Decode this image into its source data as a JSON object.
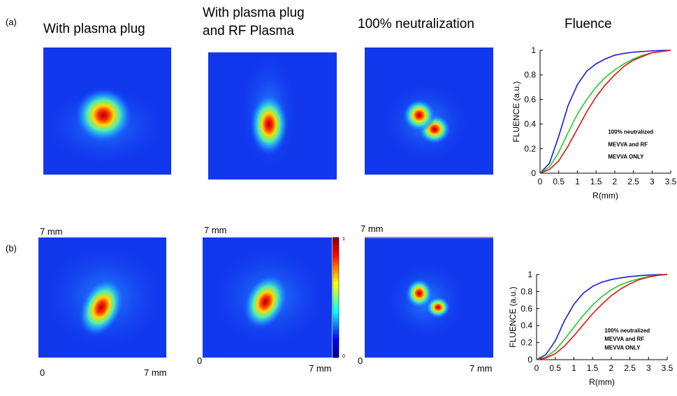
{
  "panel_labels": [
    "(a)",
    "(b)"
  ],
  "column_titles": [
    [
      "With plasma plug"
    ],
    [
      "With plasma plug",
      "and RF Plasma"
    ],
    [
      "100% neutralization"
    ],
    [
      "Fluence"
    ]
  ],
  "image_scales": [
    {
      "top": "7 mm",
      "left": "0",
      "right": "7 mm"
    },
    {
      "top": "7 mm",
      "left": "0",
      "right": "7 mm"
    },
    {
      "top": "7 mm",
      "left": "0",
      "right": "7 mm"
    }
  ],
  "colorbar_labels": {
    "max": "1",
    "min": "0"
  },
  "chart_data": [
    {
      "type": "line",
      "xlabel": "R(mm)",
      "ylabel": "FLUENCE (a.u.)",
      "x": [
        0,
        0.25,
        0.5,
        0.75,
        1,
        1.25,
        1.5,
        1.75,
        2,
        2.25,
        2.5,
        2.75,
        3,
        3.25,
        3.5
      ],
      "xlim": [
        0,
        3.5
      ],
      "xticks": [
        0,
        0.5,
        1,
        1.5,
        2,
        2.5,
        3,
        3.5
      ],
      "ylim": [
        0,
        1
      ],
      "yticks": [
        0,
        0.2,
        0.4,
        0.6,
        0.8,
        1
      ],
      "series": [
        {
          "name": "100% neutralized",
          "color": "#1a1ad0",
          "values": [
            0,
            0.08,
            0.3,
            0.55,
            0.72,
            0.83,
            0.89,
            0.93,
            0.96,
            0.975,
            0.985,
            0.99,
            0.995,
            0.998,
            1
          ]
        },
        {
          "name": "MEVVA and RF",
          "color": "#22cc22",
          "values": [
            0,
            0.05,
            0.17,
            0.33,
            0.48,
            0.6,
            0.7,
            0.78,
            0.84,
            0.89,
            0.93,
            0.96,
            0.98,
            0.99,
            1
          ]
        },
        {
          "name": "MEVVA ONLY",
          "color": "#e01010",
          "values": [
            0,
            0.03,
            0.1,
            0.22,
            0.36,
            0.5,
            0.62,
            0.72,
            0.8,
            0.87,
            0.92,
            0.95,
            0.98,
            0.99,
            1
          ]
        }
      ]
    },
    {
      "type": "line",
      "xlabel": "R(mm)",
      "ylabel": "FLUENCE (a.u.)",
      "x": [
        0,
        0.25,
        0.5,
        0.75,
        1,
        1.25,
        1.5,
        1.75,
        2,
        2.25,
        2.5,
        2.75,
        3,
        3.25,
        3.5
      ],
      "xlim": [
        0,
        3.5
      ],
      "xticks": [
        0,
        0.5,
        1,
        1.5,
        2,
        2.5,
        3,
        3.5
      ],
      "ylim": [
        0,
        1
      ],
      "yticks": [
        0,
        0.2,
        0.4,
        0.6,
        0.8,
        1
      ],
      "series": [
        {
          "name": "100% neutralized",
          "color": "#1a1ad0",
          "values": [
            0,
            0.06,
            0.22,
            0.46,
            0.65,
            0.78,
            0.86,
            0.91,
            0.94,
            0.96,
            0.975,
            0.985,
            0.993,
            0.998,
            1
          ]
        },
        {
          "name": "MEVVA and RF",
          "color": "#22cc22",
          "values": [
            0,
            0.03,
            0.11,
            0.24,
            0.38,
            0.52,
            0.64,
            0.74,
            0.82,
            0.88,
            0.92,
            0.95,
            0.975,
            0.99,
            1
          ]
        },
        {
          "name": "MEVVA ONLY",
          "color": "#e01010",
          "values": [
            0,
            0.02,
            0.07,
            0.16,
            0.28,
            0.41,
            0.54,
            0.65,
            0.75,
            0.83,
            0.89,
            0.94,
            0.97,
            0.99,
            1
          ]
        }
      ]
    }
  ]
}
